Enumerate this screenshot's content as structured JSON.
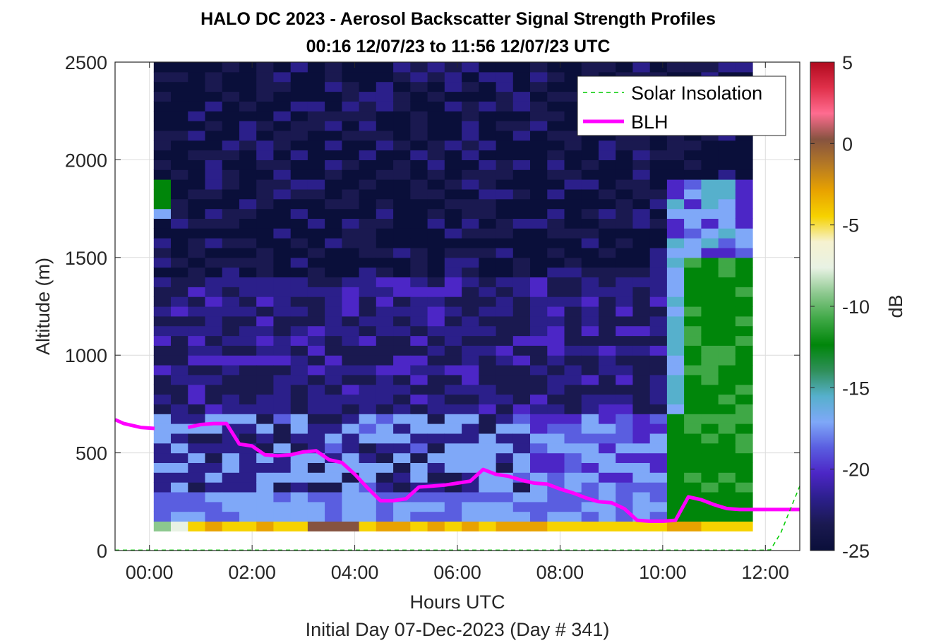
{
  "colors": {
    "blh": "#ff00ff",
    "insolation": "#00cc00",
    "grid": "#dcdcdc",
    "axis": "#262626",
    "colormap": [
      "#0a0f3a",
      "#1a1950",
      "#2b1f8a",
      "#4c26c6",
      "#5a5ee0",
      "#7fa8f8",
      "#56b0cc",
      "#2f8f5a",
      "#00860a",
      "#3fa846",
      "#8cc88e",
      "#e8f2e4",
      "#f6f2d0",
      "#f6d200",
      "#e8a200",
      "#b67a24",
      "#865340",
      "#ff6c90",
      "#e0304a",
      "#b00a1e"
    ]
  },
  "header": {
    "title": "HALO DC 2023 - Aerosol Backscatter Signal Strength Profiles",
    "subtitle": "00:16 12/07/23 to 11:56 12/07/23  UTC"
  },
  "axes": {
    "xlabel": "Hours UTC",
    "ylabel": "Altitude (m)",
    "x_ticks": [
      "00:00",
      "02:00",
      "04:00",
      "06:00",
      "08:00",
      "10:00",
      "12:00"
    ],
    "y_ticks": [
      "0",
      "500",
      "1000",
      "1500",
      "2000",
      "2500"
    ],
    "colorbar_ticks": [
      "5",
      "0",
      "-5",
      "-10",
      "-15",
      "-20",
      "-25"
    ],
    "colorbar_label": "dB"
  },
  "footer": {
    "caption": "Initial Day 07-Dec-2023 (Day # 341)"
  },
  "legend": {
    "entries": [
      "Solar Insolation",
      "BLH"
    ]
  },
  "chart_data": {
    "type": "heatmap",
    "title": "HALO DC 2023 - Aerosol Backscatter Signal Strength Profiles",
    "subtitle": "00:16 12/07/23 to 11:56 12/07/23  UTC",
    "xlabel": "Hours UTC",
    "ylabel": "Altitude (m)",
    "xlim": [
      -0.67,
      12.67
    ],
    "ylim": [
      0,
      2500
    ],
    "grid": true,
    "legend_position": "top-right",
    "colorbar": {
      "label": "dB",
      "range": [
        -25,
        5
      ]
    },
    "x_hours": [
      0.25,
      0.583,
      0.917,
      1.25,
      1.583,
      1.917,
      2.25,
      2.583,
      2.917,
      3.25,
      3.583,
      3.917,
      4.25,
      4.583,
      4.917,
      5.25,
      5.583,
      5.917,
      6.25,
      6.583,
      6.917,
      7.25,
      7.583,
      7.917,
      8.25,
      8.583,
      8.917,
      9.25,
      9.583,
      9.917,
      10.25,
      10.583,
      10.917,
      11.25,
      11.583
    ],
    "altitude_bins": [
      125,
      175,
      225,
      275,
      325,
      375,
      425,
      475,
      525,
      575,
      625,
      675,
      725,
      775,
      825,
      875,
      925,
      975,
      1025,
      1075,
      1125,
      1175,
      1225,
      1275,
      1325,
      1375,
      1425,
      1475,
      1525,
      1575,
      1625,
      1675,
      1725,
      1775,
      1825,
      1875,
      1925,
      1975,
      2025,
      2075,
      2125,
      2175,
      2225,
      2275,
      2325,
      2375,
      2425,
      2475
    ],
    "series": [
      {
        "name": "BLH",
        "x": [
          -0.67,
          -0.5,
          -0.17,
          0.1,
          0.5,
          0.75,
          1.0,
          1.25,
          1.5,
          1.75,
          2.0,
          2.25,
          2.5,
          2.75,
          3.0,
          3.25,
          3.5,
          3.75,
          4.0,
          4.25,
          4.5,
          4.75,
          5.0,
          5.25,
          5.5,
          5.75,
          6.0,
          6.25,
          6.5,
          6.75,
          7.0,
          7.25,
          7.5,
          7.75,
          8.0,
          8.25,
          8.5,
          8.75,
          9.0,
          9.25,
          9.5,
          9.75,
          10.0,
          10.25,
          10.5,
          10.75,
          11.0,
          11.25,
          11.5,
          11.75,
          12.0,
          12.25,
          12.67
        ],
        "y": [
          670,
          650,
          630,
          625,
          null,
          630,
          645,
          650,
          650,
          545,
          535,
          490,
          485,
          490,
          505,
          510,
          465,
          450,
          390,
          320,
          255,
          255,
          265,
          325,
          330,
          335,
          345,
          355,
          415,
          390,
          380,
          360,
          345,
          340,
          315,
          295,
          270,
          250,
          245,
          215,
          155,
          150,
          150,
          155,
          275,
          260,
          235,
          215,
          210,
          210,
          210,
          210,
          210
        ]
      },
      {
        "name": "Solar Insolation",
        "x": [
          -0.67,
          12.0,
          12.1,
          12.3,
          12.5,
          12.67
        ],
        "y": [
          2,
          2,
          4,
          90,
          220,
          330
        ]
      }
    ]
  }
}
